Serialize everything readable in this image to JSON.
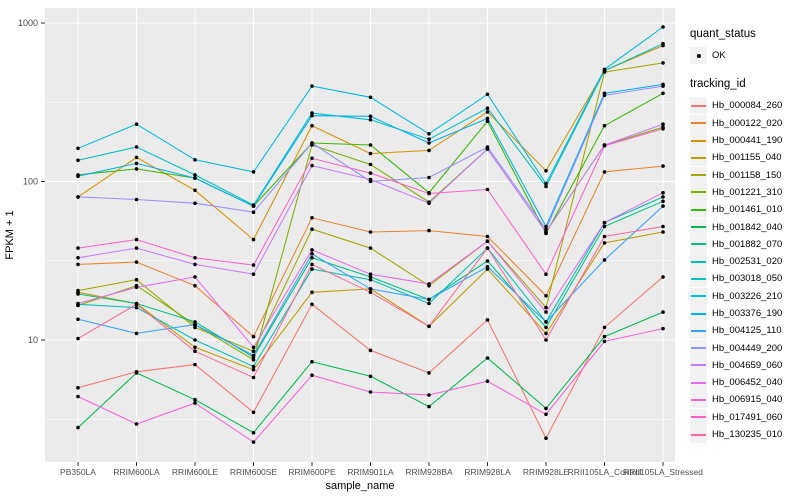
{
  "figure": {
    "background": "#FFFFFF",
    "panel_background": "#EBEBEB",
    "gridline_color": "#FFFFFF",
    "tick_color": "#333333",
    "tick_text_color": "#4D4D4D",
    "legend_key_background": "#F2F2F2",
    "point_color": "#000000"
  },
  "axes": {
    "x_title": "sample_name",
    "y_title": "FPKM + 1",
    "y_tick_labels": [
      "10",
      "100",
      "1000"
    ]
  },
  "legend": {
    "quant_status_title": "quant_status",
    "quant_status_items": [
      {
        "label": "OK",
        "marker": "point-icon"
      }
    ],
    "tracking_title": "tracking_id"
  },
  "chart_data": {
    "type": "line",
    "x_scale": "categorical",
    "y_scale": "log10",
    "title": "",
    "xlabel": "sample_name",
    "ylabel": "FPKM + 1",
    "y_ticks": [
      10,
      100,
      1000
    ],
    "ylim": [
      1.7,
      1100
    ],
    "grid": true,
    "legend_position": "right",
    "quant_status": "OK",
    "categories": [
      "PB350LA",
      "RRIM600LA",
      "RRIM600LE",
      "RRIM600SE",
      "RRIM600PE",
      "RRIM901LA",
      "RRIM928BA",
      "RRIM928LA",
      "RRIM928LE",
      "RRII105LA_Control",
      "RRII105LA_Stressed"
    ],
    "series": [
      {
        "name": "Hb_000084_260",
        "color": "#F8766D",
        "values": [
          5.0,
          6.3,
          7.0,
          3.5,
          16.8,
          8.6,
          6.2,
          13.4,
          2.4,
          12.0,
          25.0
        ]
      },
      {
        "name": "Hb_000122_020",
        "color": "#EA8331",
        "values": [
          30,
          31,
          22,
          10.5,
          59,
          48,
          49,
          45,
          19,
          115,
          125
        ]
      },
      {
        "name": "Hb_000441_190",
        "color": "#D89000",
        "values": [
          80,
          142,
          88,
          43,
          225,
          150,
          157,
          275,
          117,
          500,
          720
        ]
      },
      {
        "name": "Hb_001155_040",
        "color": "#C09B00",
        "values": [
          20,
          17,
          9,
          6.5,
          20,
          21,
          12.2,
          28,
          11,
          41,
          48
        ]
      },
      {
        "name": "Hb_001158_150",
        "color": "#A3A500",
        "values": [
          20.5,
          24,
          12,
          8.5,
          50,
          38,
          22,
          42,
          16,
          490,
          560
        ]
      },
      {
        "name": "Hb_001221_310",
        "color": "#7CAE00",
        "values": [
          16.5,
          22,
          12.5,
          7.5,
          170,
          128,
          74,
          160,
          48,
          170,
          220
        ]
      },
      {
        "name": "Hb_001461_010",
        "color": "#39B600",
        "values": [
          110,
          120,
          105,
          70,
          175,
          170,
          85,
          240,
          47,
          225,
          360
        ]
      },
      {
        "name": "Hb_001842_040",
        "color": "#00BB4E",
        "values": [
          2.8,
          6.2,
          4.2,
          2.6,
          7.3,
          5.9,
          3.8,
          7.7,
          3.7,
          10.5,
          15
        ]
      },
      {
        "name": "Hb_001882_070",
        "color": "#00C087",
        "values": [
          19.5,
          17,
          13,
          7.8,
          33,
          25,
          18,
          31.5,
          12,
          52,
          75
        ]
      },
      {
        "name": "Hb_002531_020",
        "color": "#00C0B2",
        "values": [
          16.8,
          16,
          10,
          6.8,
          28,
          24,
          17,
          38,
          13,
          55,
          80
        ]
      },
      {
        "name": "Hb_003018_050",
        "color": "#00BFC4",
        "values": [
          136,
          165,
          110,
          71,
          270,
          245,
          185,
          290,
          93,
          500,
          740
        ]
      },
      {
        "name": "Hb_003226_210",
        "color": "#00BAE0",
        "values": [
          162,
          230,
          137,
          115,
          400,
          340,
          200,
          355,
          97,
          510,
          944
        ]
      },
      {
        "name": "Hb_003376_190",
        "color": "#00B0F6",
        "values": [
          108,
          130,
          105,
          70,
          260,
          258,
          175,
          250,
          52,
          360,
          410
        ]
      },
      {
        "name": "Hb_004125_110",
        "color": "#35A2FF",
        "values": [
          13.5,
          11,
          12.5,
          8,
          35,
          21,
          18,
          29,
          13,
          32,
          70
        ]
      },
      {
        "name": "Hb_004449_200",
        "color": "#9590FF",
        "values": [
          80,
          77,
          73,
          64,
          175,
          100,
          106,
          165,
          50,
          350,
          400
        ]
      },
      {
        "name": "Hb_004659_060",
        "color": "#C77CFF",
        "values": [
          33,
          38,
          30,
          26,
          126,
          103,
          73,
          160,
          48,
          170,
          230
        ]
      },
      {
        "name": "Hb_006452_040",
        "color": "#E76BF3",
        "values": [
          17,
          21.5,
          25,
          9,
          37,
          26,
          22.6,
          42,
          15,
          55,
          85
        ]
      },
      {
        "name": "Hb_006915_040",
        "color": "#FA62DB",
        "values": [
          4.4,
          2.95,
          4.0,
          2.27,
          6.0,
          4.7,
          4.5,
          5.5,
          3.4,
          9.8,
          11.8
        ]
      },
      {
        "name": "Hb_017491_060",
        "color": "#FF61CC",
        "values": [
          38,
          43,
          33,
          29.7,
          140,
          113,
          84,
          89,
          26,
          168,
          215
        ]
      },
      {
        "name": "Hb_130235_010",
        "color": "#FF6A98",
        "values": [
          10.2,
          16.8,
          8.5,
          5.8,
          30,
          20,
          12.2,
          38,
          10,
          45,
          52
        ]
      }
    ]
  }
}
